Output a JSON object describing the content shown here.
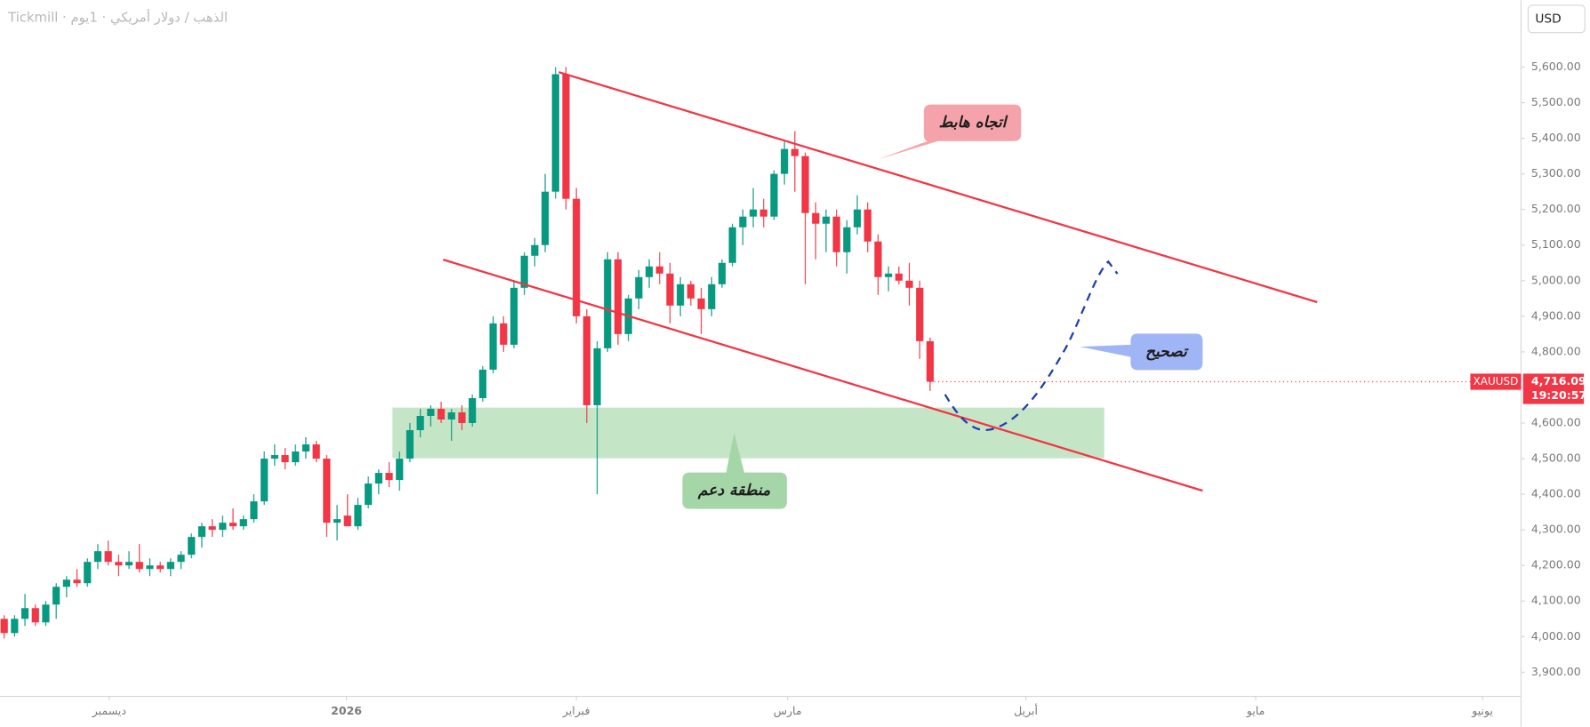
{
  "chart_data": {
    "type": "candlestick",
    "title": "Tickmill · الذهب / دولار أمريكي · 1يوم",
    "currency": "USD",
    "symbol": "XAUUSD",
    "price_label": "4,716.09",
    "countdown": "19:20:57",
    "up_color": "#089981",
    "down_color": "#f23645",
    "x": [
      0,
      1,
      2,
      3,
      4,
      5,
      6,
      7,
      8,
      9,
      10,
      11,
      12,
      13,
      14,
      15,
      16,
      17,
      18,
      19,
      20,
      21,
      22,
      23,
      24,
      25,
      26,
      27,
      28,
      29,
      30,
      31,
      32,
      33,
      34,
      35,
      36,
      37,
      38,
      39,
      40,
      41,
      42,
      43,
      44,
      45,
      46,
      47,
      48,
      49,
      50,
      51,
      52,
      53,
      54,
      55,
      56,
      57,
      58,
      59,
      60,
      61,
      62,
      63,
      64,
      65,
      66,
      67,
      68,
      69,
      70,
      71,
      72,
      73,
      74,
      75,
      76,
      77,
      78,
      79,
      80,
      81,
      82,
      83,
      84,
      85,
      86,
      87,
      88,
      89
    ],
    "open": [
      4050,
      4010,
      4050,
      4080,
      4040,
      4090,
      4140,
      4160,
      4150,
      4210,
      4240,
      4210,
      4200,
      4210,
      4190,
      4200,
      4190,
      4210,
      4230,
      4280,
      4310,
      4300,
      4320,
      4310,
      4330,
      4380,
      4500,
      4510,
      4490,
      4520,
      4540,
      4500,
      4320,
      4340,
      4310,
      4370,
      4430,
      4460,
      4440,
      4500,
      4580,
      4620,
      4640,
      4610,
      4630,
      4600,
      4670,
      4750,
      4880,
      4820,
      4980,
      5070,
      5100,
      5250,
      5580,
      5230,
      4900,
      4650,
      4810,
      5060,
      4850,
      4950,
      5010,
      5040,
      5020,
      4930,
      4990,
      4950,
      4920,
      4990,
      5050,
      5150,
      5180,
      5200,
      5180,
      5300,
      5370,
      5350,
      5190,
      5160,
      5180,
      5080,
      5150,
      5200,
      5110,
      5010,
      5020,
      5000,
      4980,
      4830
    ],
    "high": [
      4060,
      4060,
      4120,
      4090,
      4100,
      4150,
      4170,
      4190,
      4220,
      4260,
      4270,
      4230,
      4240,
      4260,
      4220,
      4210,
      4220,
      4240,
      4290,
      4320,
      4330,
      4340,
      4360,
      4340,
      4400,
      4520,
      4540,
      4530,
      4540,
      4560,
      4550,
      4510,
      4370,
      4400,
      4390,
      4450,
      4470,
      4490,
      4520,
      4600,
      4640,
      4650,
      4660,
      4640,
      4650,
      4680,
      4760,
      4900,
      4900,
      5000,
      5080,
      5120,
      5300,
      5600,
      5600,
      5260,
      4920,
      4830,
      5080,
      5080,
      4960,
      5030,
      5060,
      5080,
      5050,
      5010,
      5000,
      4980,
      5010,
      5060,
      5160,
      5200,
      5260,
      5230,
      5310,
      5390,
      5420,
      5360,
      5220,
      5200,
      5200,
      5170,
      5240,
      5220,
      5130,
      5040,
      5040,
      5050,
      5000,
      4840
    ],
    "low": [
      3995,
      4000,
      4030,
      4030,
      4030,
      4050,
      4110,
      4140,
      4140,
      4190,
      4200,
      4170,
      4190,
      4180,
      4170,
      4180,
      4170,
      4190,
      4220,
      4250,
      4280,
      4280,
      4300,
      4300,
      4320,
      4370,
      4480,
      4470,
      4480,
      4500,
      4490,
      4280,
      4270,
      4320,
      4300,
      4360,
      4400,
      4420,
      4410,
      4490,
      4560,
      4590,
      4600,
      4550,
      4580,
      4590,
      4660,
      4740,
      4800,
      4810,
      4960,
      5040,
      5080,
      5230,
      5200,
      4880,
      4600,
      4400,
      4800,
      4820,
      4830,
      4920,
      4980,
      4990,
      4880,
      4900,
      4930,
      4850,
      4900,
      4980,
      5040,
      5100,
      5150,
      5150,
      5170,
      5270,
      5250,
      4990,
      5060,
      5080,
      5040,
      5020,
      5130,
      5080,
      4960,
      4970,
      4990,
      4930,
      4780,
      4690
    ],
    "close": [
      4010,
      4050,
      4080,
      4040,
      4090,
      4140,
      4160,
      4150,
      4210,
      4240,
      4210,
      4200,
      4210,
      4190,
      4200,
      4190,
      4210,
      4230,
      4280,
      4310,
      4300,
      4320,
      4310,
      4330,
      4380,
      4500,
      4510,
      4490,
      4520,
      4540,
      4500,
      4320,
      4330,
      4310,
      4370,
      4430,
      4460,
      4440,
      4500,
      4580,
      4620,
      4640,
      4610,
      4630,
      4600,
      4670,
      4750,
      4880,
      4820,
      4980,
      5070,
      5100,
      5250,
      5580,
      5230,
      4900,
      4650,
      4810,
      5060,
      4850,
      4950,
      5010,
      5040,
      5020,
      4930,
      4990,
      4950,
      4920,
      4990,
      5050,
      5150,
      5180,
      5200,
      5180,
      5300,
      5370,
      5350,
      5190,
      5160,
      5180,
      5080,
      5150,
      5200,
      5110,
      5010,
      5020,
      5000,
      4980,
      4830,
      4716.09
    ],
    "xlim": [
      -0.4,
      145.8
    ],
    "xticks": [
      {
        "value": 10.1,
        "label": "ديسمبر"
      },
      {
        "value": 32.9,
        "label": "2026"
      },
      {
        "value": 55.0,
        "label": "فبراير"
      },
      {
        "value": 75.3,
        "label": "مارس"
      },
      {
        "value": 98.2,
        "label": "أبريل"
      },
      {
        "value": 120.3,
        "label": "مايو"
      },
      {
        "value": 142.1,
        "label": "يونيو"
      }
    ],
    "ylim": [
      3832,
      5788
    ],
    "yticks": [
      {
        "value": 3900,
        "label": "3,900.00"
      },
      {
        "value": 4000,
        "label": "4,000.00"
      },
      {
        "value": 4100,
        "label": "4,100.00"
      },
      {
        "value": 4200,
        "label": "4,200.00"
      },
      {
        "value": 4300,
        "label": "4,300.00"
      },
      {
        "value": 4400,
        "label": "4,400.00"
      },
      {
        "value": 4500,
        "label": "4,500.00"
      },
      {
        "value": 4600,
        "label": "4,600.00"
      },
      {
        "value": 4700,
        "label": "4,700.00"
      },
      {
        "value": 4800,
        "label": "4,800.00"
      },
      {
        "value": 4900,
        "label": "4,900.00"
      },
      {
        "value": 5000,
        "label": "5,000.00"
      },
      {
        "value": 5100,
        "label": "5,100.00"
      },
      {
        "value": 5200,
        "label": "5,200.00"
      },
      {
        "value": 5300,
        "label": "5,300.00"
      },
      {
        "value": 5400,
        "label": "5,400.00"
      },
      {
        "value": 5500,
        "label": "5,500.00"
      },
      {
        "value": 5600,
        "label": "5,600.00"
      }
    ],
    "annotations": [
      {
        "text": "اتجاه هابط"
      },
      {
        "text": "تصحيح"
      },
      {
        "text": "منطقة دعم"
      }
    ]
  }
}
